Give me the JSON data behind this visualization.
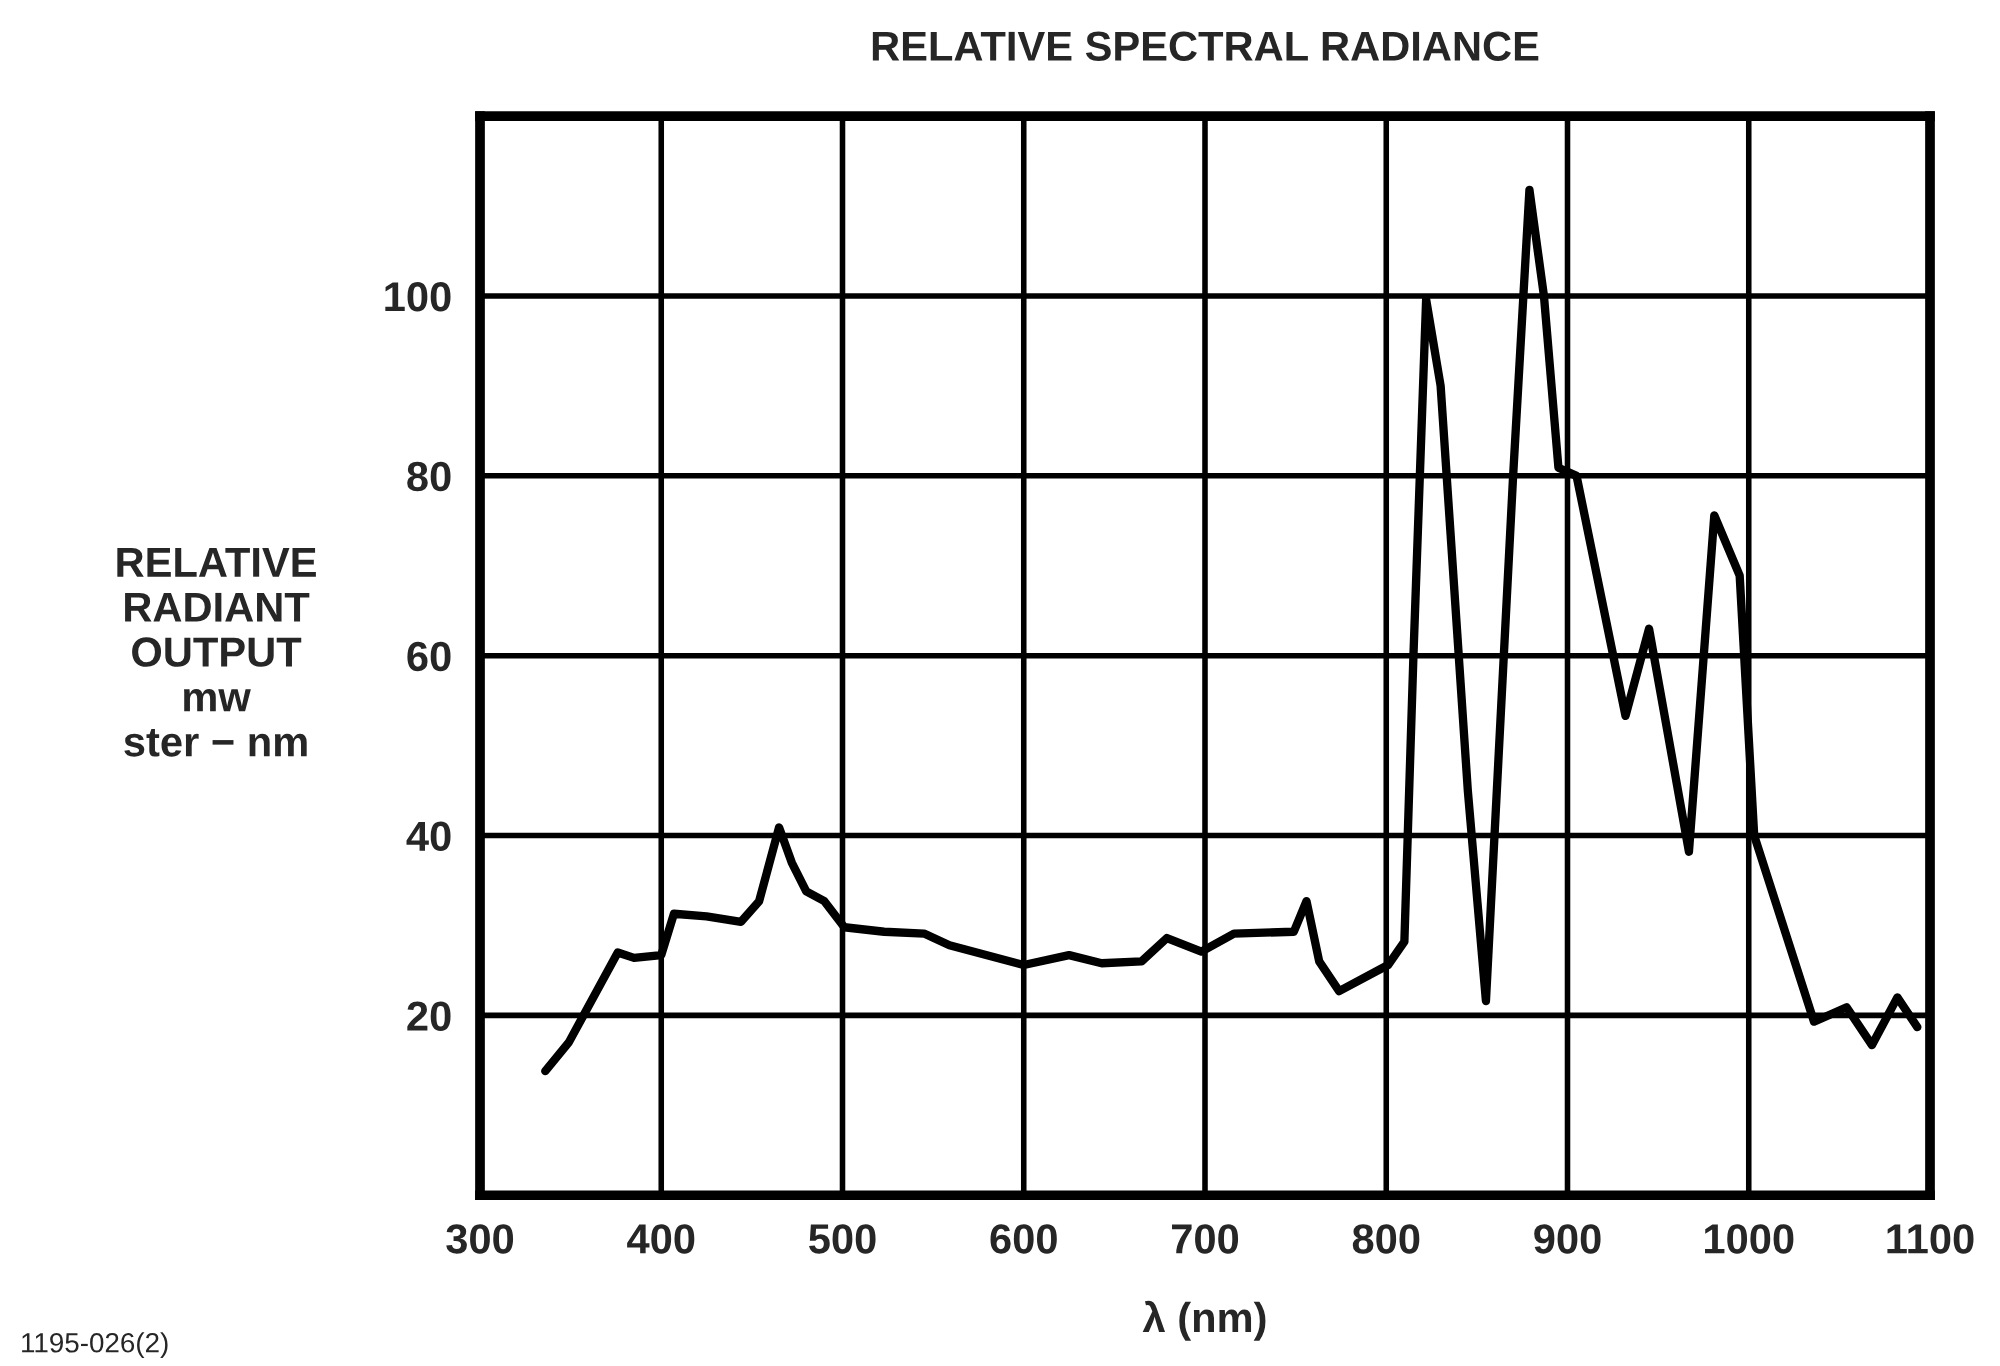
{
  "chart_data": {
    "type": "line",
    "title": "RELATIVE SPECTRAL RADIANCE",
    "xlabel": "λ (nm)",
    "ylabel": "RELATIVE\nRADIANT\nOUTPUT\nmw\nster − nm",
    "annotations": [
      "1195-026(2)"
    ],
    "series": [
      {
        "color": "#000000",
        "x": [
          336,
          349,
          376,
          385,
          400,
          407,
          425,
          444,
          454,
          465,
          472,
          480,
          490,
          501,
          523,
          545,
          559,
          600,
          625,
          643,
          665,
          679,
          698,
          716,
          749,
          756,
          763,
          774,
          801,
          810,
          815,
          822,
          830,
          845,
          855,
          870,
          879,
          887,
          895,
          905,
          932,
          945,
          967,
          981,
          995,
          1003,
          1036,
          1054,
          1068,
          1082,
          1093
        ],
        "values": [
          13.8,
          17,
          27,
          26.4,
          26.7,
          31.3,
          31,
          30.4,
          32.7,
          40.9,
          37,
          33.8,
          32.7,
          29.8,
          29.3,
          29.1,
          27.8,
          25.6,
          26.7,
          25.8,
          26,
          28.6,
          27.1,
          29.1,
          29.3,
          32.7,
          26,
          22.7,
          25.6,
          28.2,
          60,
          99.6,
          90,
          45,
          21.6,
          80,
          111.8,
          100,
          80.9,
          80,
          53.3,
          63,
          38.2,
          75.6,
          68.9,
          40,
          19.3,
          20.9,
          16.7,
          22,
          18.7
        ]
      }
    ],
    "xlim": [
      300,
      1100
    ],
    "ylim": [
      0,
      120
    ],
    "xticks": [
      300,
      400,
      500,
      600,
      700,
      800,
      900,
      1000,
      1100
    ],
    "yticks": [
      {
        "value": 0,
        "label": null
      },
      20,
      40,
      60,
      80,
      100,
      {
        "value": 120,
        "label": null
      }
    ],
    "grid": true,
    "line_style": "solid",
    "marker": "none"
  }
}
